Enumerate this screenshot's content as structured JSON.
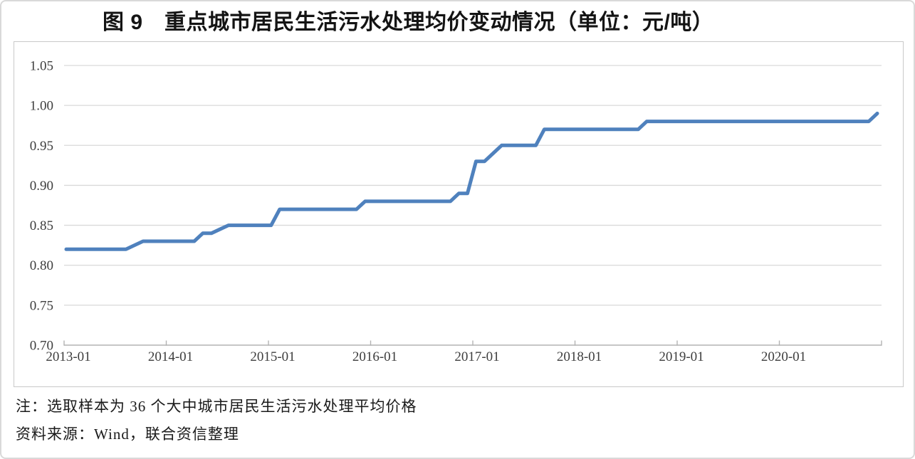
{
  "figure": {
    "title": "图 9　重点城市居民生活污水处理均价变动情况（单位：元/吨）",
    "note": "注：选取样本为 36 个大中城市居民生活污水处理平均价格",
    "source": "资料来源：Wind，联合资信整理"
  },
  "chart_data": {
    "type": "line",
    "title": "图 9　重点城市居民生活污水处理均价变动情况（单位：元/吨）",
    "unit": "元/吨",
    "ylim": [
      0.7,
      1.05
    ],
    "ytick_labels": [
      "1.05",
      "1.00",
      "0.95",
      "0.90",
      "0.85",
      "0.80",
      "0.75",
      "0.70"
    ],
    "xtick_labels": [
      "2013-01",
      "2014-01",
      "2015-01",
      "2016-01",
      "2017-01",
      "2018-01",
      "2019-01",
      "2020-01"
    ],
    "grid": true,
    "legend_position": "none",
    "line_color": "#4f81bd",
    "grid_color": "#d9d9d9",
    "axis_color": "#b3b3b3",
    "label_color": "#3d3d3d",
    "x": [
      "2013-01",
      "2013-02",
      "2013-03",
      "2013-04",
      "2013-05",
      "2013-06",
      "2013-07",
      "2013-08",
      "2013-09",
      "2013-10",
      "2013-11",
      "2013-12",
      "2014-01",
      "2014-02",
      "2014-03",
      "2014-04",
      "2014-05",
      "2014-06",
      "2014-07",
      "2014-08",
      "2014-09",
      "2014-10",
      "2014-11",
      "2014-12",
      "2015-01",
      "2015-02",
      "2015-03",
      "2015-04",
      "2015-05",
      "2015-06",
      "2015-07",
      "2015-08",
      "2015-09",
      "2015-10",
      "2015-11",
      "2015-12",
      "2016-01",
      "2016-02",
      "2016-03",
      "2016-04",
      "2016-05",
      "2016-06",
      "2016-07",
      "2016-08",
      "2016-09",
      "2016-10",
      "2016-11",
      "2016-12",
      "2017-01",
      "2017-02",
      "2017-03",
      "2017-04",
      "2017-05",
      "2017-06",
      "2017-07",
      "2017-08",
      "2017-09",
      "2017-10",
      "2017-11",
      "2017-12",
      "2018-01",
      "2018-02",
      "2018-03",
      "2018-04",
      "2018-05",
      "2018-06",
      "2018-07",
      "2018-08",
      "2018-09",
      "2018-10",
      "2018-11",
      "2018-12",
      "2019-01",
      "2019-02",
      "2019-03",
      "2019-04",
      "2019-05",
      "2019-06",
      "2019-07",
      "2019-08",
      "2019-09",
      "2019-10",
      "2019-11",
      "2019-12",
      "2020-01",
      "2020-02",
      "2020-03",
      "2020-04",
      "2020-05",
      "2020-06",
      "2020-07",
      "2020-08",
      "2020-09",
      "2020-10",
      "2020-11",
      "2020-12"
    ],
    "values": [
      0.82,
      0.82,
      0.82,
      0.82,
      0.82,
      0.82,
      0.82,
      0.82,
      0.825,
      0.83,
      0.83,
      0.83,
      0.83,
      0.83,
      0.83,
      0.83,
      0.84,
      0.84,
      0.845,
      0.85,
      0.85,
      0.85,
      0.85,
      0.85,
      0.85,
      0.87,
      0.87,
      0.87,
      0.87,
      0.87,
      0.87,
      0.87,
      0.87,
      0.87,
      0.87,
      0.88,
      0.88,
      0.88,
      0.88,
      0.88,
      0.88,
      0.88,
      0.88,
      0.88,
      0.88,
      0.88,
      0.89,
      0.89,
      0.93,
      0.93,
      0.94,
      0.95,
      0.95,
      0.95,
      0.95,
      0.95,
      0.97,
      0.97,
      0.97,
      0.97,
      0.97,
      0.97,
      0.97,
      0.97,
      0.97,
      0.97,
      0.97,
      0.97,
      0.98,
      0.98,
      0.98,
      0.98,
      0.98,
      0.98,
      0.98,
      0.98,
      0.98,
      0.98,
      0.98,
      0.98,
      0.98,
      0.98,
      0.98,
      0.98,
      0.98,
      0.98,
      0.98,
      0.98,
      0.98,
      0.98,
      0.98,
      0.98,
      0.98,
      0.98,
      0.98,
      0.99
    ]
  }
}
